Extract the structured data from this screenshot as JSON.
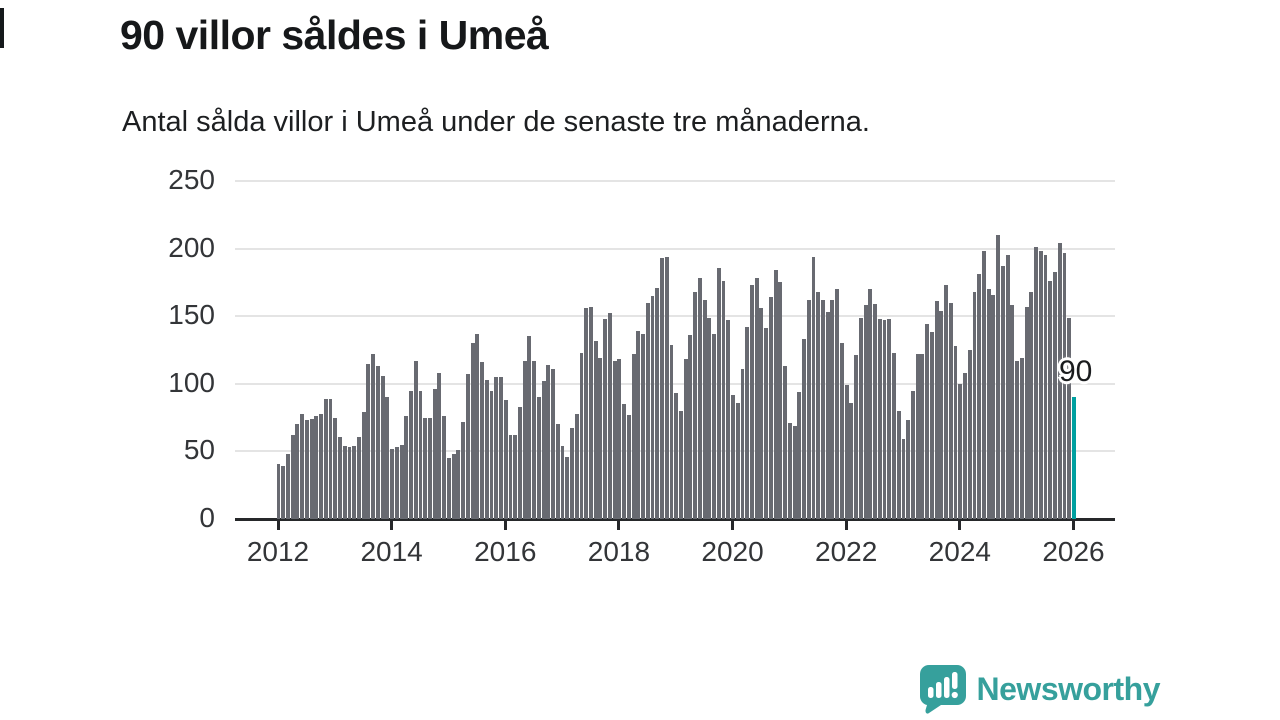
{
  "title": "90 villor såldes i Umeå",
  "subtitle": "Antal sålda villor i Umeå under de senaste tre månaderna.",
  "annotation": {
    "last_value_label": "90"
  },
  "branding": {
    "name": "Newsworthy",
    "icon": "chart-speech-bubble-icon"
  },
  "colors": {
    "bar": "#686a71",
    "highlight": "#00a0a0",
    "brand": "#36a09c",
    "axis": "#26282a",
    "grid": "#e4e4e4",
    "text": "#16181a",
    "tick_text": "#333538"
  },
  "chart_data": {
    "type": "bar",
    "title": "90 villor såldes i Umeå",
    "subtitle": "Antal sålda villor i Umeå under de senaste tre månaderna.",
    "xlabel": "",
    "ylabel": "",
    "unit": "sålda villor (rullande tre månader)",
    "start": "2012-01",
    "frequency": "monthly",
    "ylim": [
      0,
      250
    ],
    "y_ticks": [
      0,
      50,
      100,
      150,
      200,
      250
    ],
    "x_tick_labels": [
      "2012",
      "2014",
      "2016",
      "2018",
      "2020",
      "2022",
      "2024",
      "2026"
    ],
    "grid": true,
    "legend": "none",
    "highlight_last": true,
    "highlight_value": 90,
    "values": [
      41,
      39,
      48,
      62,
      70,
      78,
      73,
      74,
      76,
      78,
      89,
      89,
      75,
      61,
      54,
      53,
      54,
      61,
      79,
      115,
      122,
      113,
      106,
      90,
      52,
      53,
      55,
      76,
      95,
      117,
      95,
      75,
      75,
      96,
      108,
      76,
      45,
      48,
      51,
      72,
      107,
      130,
      137,
      116,
      103,
      95,
      105,
      105,
      88,
      62,
      62,
      83,
      117,
      135,
      117,
      90,
      102,
      114,
      111,
      70,
      54,
      46,
      67,
      78,
      123,
      156,
      157,
      132,
      119,
      148,
      152,
      117,
      118,
      85,
      77,
      122,
      139,
      137,
      160,
      165,
      171,
      193,
      194,
      129,
      93,
      80,
      118,
      136,
      168,
      178,
      162,
      149,
      137,
      186,
      176,
      147,
      92,
      86,
      111,
      142,
      173,
      178,
      156,
      141,
      164,
      184,
      175,
      113,
      71,
      69,
      94,
      133,
      162,
      194,
      168,
      162,
      153,
      162,
      170,
      130,
      99,
      86,
      121,
      149,
      158,
      170,
      159,
      148,
      147,
      148,
      123,
      80,
      59,
      73,
      95,
      122,
      122,
      144,
      138,
      161,
      154,
      173,
      160,
      128,
      100,
      108,
      125,
      168,
      181,
      198,
      170,
      166,
      210,
      187,
      195,
      158,
      117,
      119,
      157,
      168,
      201,
      198,
      195,
      176,
      183,
      204,
      197,
      149,
      90
    ]
  }
}
